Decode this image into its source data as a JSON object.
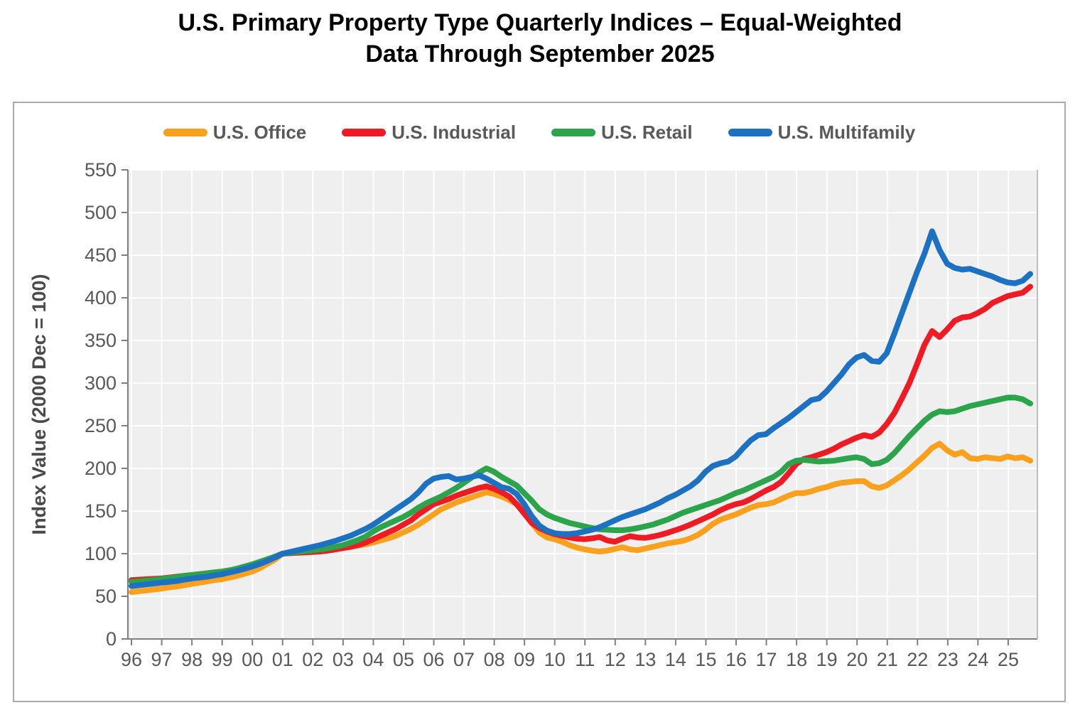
{
  "title": {
    "line1": "U.S. Primary Property Type Quarterly Indices – Equal-Weighted",
    "line2": "Data Through September 2025"
  },
  "chart_data": {
    "type": "line",
    "title": "U.S. Primary Property Type Quarterly Indices – Equal-Weighted",
    "subtitle": "Data Through September 2025",
    "xlabel": "",
    "ylabel": "Index Value (2000 Dec = 100)",
    "ylim": [
      0,
      550
    ],
    "ytick_step": 50,
    "grid": true,
    "legend_position": "top",
    "plot_background": "#EFEFEF",
    "gridline_color": "#FFFFFF",
    "axis_color": "#7F7F7F",
    "tick_label_color": "#595959",
    "x_frequency": "quarterly",
    "x_first_point": "1995 Dec",
    "x_last_point": "2025 Sep",
    "x_tick_labels": [
      "96",
      "97",
      "98",
      "99",
      "00",
      "01",
      "02",
      "03",
      "04",
      "05",
      "06",
      "07",
      "08",
      "09",
      "10",
      "11",
      "12",
      "13",
      "14",
      "15",
      "16",
      "17",
      "18",
      "19",
      "20",
      "21",
      "22",
      "23",
      "24",
      "25"
    ],
    "series": [
      {
        "name": "U.S. Office",
        "color": "#F9A11C",
        "values": [
          55,
          56,
          57,
          58,
          59,
          60.5,
          61.5,
          63,
          64.5,
          66,
          67.5,
          69,
          70,
          72,
          74,
          76.5,
          79,
          83,
          88,
          93,
          100,
          101,
          102,
          103,
          103.5,
          104,
          104.5,
          105.5,
          106.5,
          108,
          109.5,
          111,
          113,
          115.5,
          118,
          121,
          125,
          129,
          134,
          140,
          146,
          152,
          156,
          160,
          163,
          166,
          169,
          172,
          170,
          167,
          163,
          158,
          150,
          136,
          125,
          119,
          117,
          114,
          110,
          107,
          105,
          103.5,
          102.5,
          103.5,
          105.5,
          107.5,
          105,
          104,
          106,
          108,
          110,
          112,
          113.5,
          115,
          118,
          122,
          128,
          135,
          140,
          143,
          146,
          150,
          154,
          157,
          158,
          160,
          164,
          168,
          171,
          171,
          173,
          176,
          178,
          181,
          183,
          184,
          185,
          185,
          179,
          177,
          180,
          186,
          192,
          199,
          207,
          215,
          224,
          229,
          221,
          216,
          219,
          212,
          211,
          213,
          212,
          211,
          214,
          212,
          213,
          209
        ]
      },
      {
        "name": "U.S. Industrial",
        "color": "#EE1B24",
        "values": [
          69,
          69.5,
          70,
          70.5,
          71,
          72,
          73,
          74,
          75,
          76,
          77,
          78,
          79,
          80.5,
          82,
          84,
          86.5,
          89.5,
          93,
          96.5,
          100,
          100.5,
          101,
          101.5,
          102,
          102.5,
          103.5,
          105,
          106.5,
          108,
          110,
          113,
          117,
          121,
          125,
          129,
          134,
          139,
          146,
          152,
          158,
          161,
          164,
          168,
          171,
          174,
          177,
          179,
          176,
          172,
          167,
          158,
          147,
          136,
          130,
          126,
          123,
          121,
          119,
          117.5,
          117,
          118,
          119.5,
          115.5,
          114,
          117.5,
          120.5,
          119,
          118.5,
          120,
          122,
          124.5,
          127.5,
          130.5,
          134,
          138,
          142,
          146,
          151,
          155,
          158,
          160,
          164,
          169,
          174,
          178,
          184,
          194,
          205,
          211,
          213,
          216,
          219,
          223,
          228,
          232,
          236,
          239,
          237,
          242,
          252,
          265,
          282,
          300,
          322,
          345,
          361,
          354,
          363,
          373,
          377,
          378,
          382,
          387,
          394,
          398,
          402,
          404,
          406,
          413
        ]
      },
      {
        "name": "U.S. Retail",
        "color": "#2CA44B",
        "values": [
          67,
          67.5,
          68.5,
          69.5,
          70.5,
          71.5,
          72.5,
          74,
          75,
          76,
          77,
          78,
          79,
          80.5,
          82.5,
          85,
          87.5,
          90.5,
          93.5,
          96.5,
          100,
          101,
          102,
          103,
          104,
          105,
          106.5,
          108,
          110,
          113,
          116,
          120,
          126,
          131,
          135,
          139,
          143,
          148,
          154,
          159,
          163,
          167,
          172,
          177,
          183,
          189,
          195,
          200,
          196,
          190,
          185,
          180,
          171,
          162,
          152,
          146,
          142,
          139,
          136,
          134,
          132,
          130,
          128.5,
          128,
          127.5,
          127.5,
          128.5,
          130,
          132,
          134,
          137,
          140,
          144,
          148,
          151,
          154,
          157,
          160,
          163,
          167,
          171,
          174,
          178,
          182,
          186,
          190,
          196,
          205,
          209,
          210,
          209,
          208,
          208.5,
          209,
          210.5,
          212,
          213,
          211,
          205,
          206,
          210,
          218,
          228,
          238,
          247,
          256,
          263,
          267,
          266,
          267,
          270,
          273,
          275,
          277,
          279,
          281,
          283,
          283,
          281,
          276
        ]
      },
      {
        "name": "U.S. Multifamily",
        "color": "#1C71C2",
        "values": [
          62,
          63,
          64,
          65,
          66,
          67,
          68,
          69.5,
          71,
          72,
          73,
          74.5,
          76,
          78,
          80,
          82.5,
          85,
          88,
          91.5,
          95.5,
          100,
          102,
          104,
          106,
          108,
          110,
          112.5,
          115,
          118,
          121,
          125,
          129,
          134,
          140,
          146,
          152,
          158,
          164,
          172,
          182,
          188,
          190,
          191,
          187,
          188,
          190,
          192,
          188,
          183,
          178,
          176,
          170,
          158,
          144,
          133,
          127,
          124,
          123,
          123,
          124,
          126,
          128,
          131,
          135,
          139,
          143,
          146,
          149,
          152,
          156,
          160,
          165,
          169,
          174,
          179,
          186,
          196,
          203,
          206,
          208,
          214,
          224,
          233,
          239,
          240,
          247,
          253,
          259,
          266,
          273,
          280,
          282,
          290,
          300,
          310,
          322,
          330,
          333,
          326,
          325,
          335,
          358,
          382,
          406,
          430,
          452,
          478,
          456,
          440,
          435,
          433,
          434,
          431,
          428,
          425,
          421,
          418,
          417,
          420,
          428
        ]
      }
    ]
  }
}
